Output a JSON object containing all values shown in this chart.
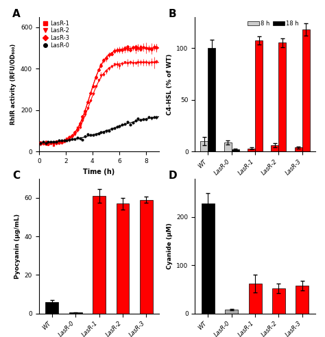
{
  "panel_A": {
    "xlabel": "Time (h)",
    "ylabel": "RhIR activity (RFU/OD₆₀₀)",
    "xlim": [
      0,
      9
    ],
    "ylim": [
      0,
      650
    ],
    "yticks": [
      0,
      200,
      400,
      600
    ],
    "xticks": [
      0,
      2,
      4,
      6,
      8
    ],
    "series": {
      "LasR-1": {
        "color": "#FF0000",
        "marker": "s",
        "ymax": 500,
        "ybase": 38,
        "k": 1.8,
        "x0": 3.8
      },
      "LasR-2": {
        "color": "#FF0000",
        "marker": "v",
        "ymax": 430,
        "ybase": 38,
        "k": 1.8,
        "x0": 3.8
      },
      "LasR-3": {
        "color": "#FF0000",
        "marker": "D",
        "ymax": 500,
        "ybase": 38,
        "k": 1.8,
        "x0": 3.8
      },
      "LasR-0": {
        "color": "#000000",
        "marker": "o",
        "ymax": 185,
        "ybase": 38,
        "k": 0.6,
        "x0": 5.5
      }
    },
    "legend_order": [
      "LasR-1",
      "LasR-2",
      "LasR-3",
      "LasR-0"
    ]
  },
  "panel_B": {
    "ylabel": "C4-HSL (% of WT)",
    "ylim": [
      0,
      130
    ],
    "yticks": [
      0,
      50,
      100
    ],
    "categories": [
      "WT",
      "LasR-0",
      "LasR-1",
      "LasR-2",
      "LasR-3"
    ],
    "values_8h": [
      10,
      9,
      3,
      6,
      4
    ],
    "values_18h": [
      100,
      2,
      107,
      105,
      118
    ],
    "err_8h": [
      4,
      2,
      1,
      2,
      1
    ],
    "err_18h": [
      8,
      1,
      4,
      4,
      6
    ],
    "colors_8h": [
      "#cccccc",
      "#cccccc",
      "#FF0000",
      "#FF0000",
      "#FF0000"
    ],
    "colors_18h": [
      "#000000",
      "#000000",
      "#FF0000",
      "#FF0000",
      "#FF0000"
    ],
    "legend_8h_color": "#cccccc",
    "legend_18h_color": "#000000"
  },
  "panel_C": {
    "ylabel": "Pyocyanin (µg/mL)",
    "ylim": [
      0,
      70
    ],
    "yticks": [
      0,
      20,
      40,
      60
    ],
    "categories": [
      "WT",
      "LasR-0",
      "LasR-1",
      "LasR-2",
      "LasR-3"
    ],
    "values": [
      6,
      0.5,
      61,
      57,
      59
    ],
    "errors": [
      1.0,
      0.15,
      3.5,
      3.0,
      1.5
    ],
    "colors": [
      "#000000",
      "#000000",
      "#FF0000",
      "#FF0000",
      "#FF0000"
    ]
  },
  "panel_D": {
    "ylabel": "Cyanide (µM)",
    "ylim": [
      0,
      280
    ],
    "yticks": [
      0,
      100,
      200
    ],
    "categories": [
      "WT",
      "LasR-0",
      "LasR-1",
      "LasR-2",
      "LasR-3"
    ],
    "values": [
      228,
      8,
      62,
      52,
      58
    ],
    "errors": [
      22,
      2,
      18,
      10,
      10
    ],
    "colors": [
      "#000000",
      "#aaaaaa",
      "#FF0000",
      "#FF0000",
      "#FF0000"
    ]
  }
}
